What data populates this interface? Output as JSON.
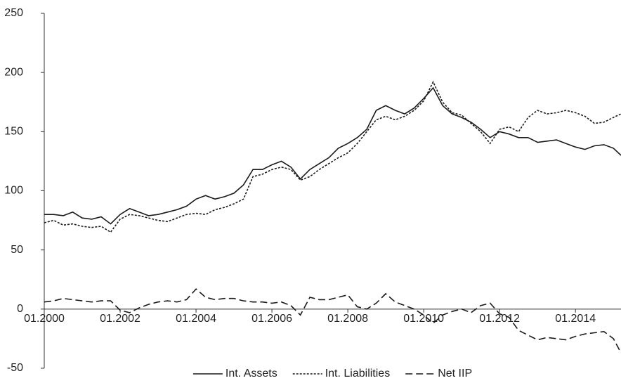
{
  "chart_data": {
    "type": "line",
    "x": [
      2000,
      2000.25,
      2000.5,
      2000.75,
      2001,
      2001.25,
      2001.5,
      2001.75,
      2002,
      2002.25,
      2002.5,
      2002.75,
      2003,
      2003.25,
      2003.5,
      2003.75,
      2004,
      2004.25,
      2004.5,
      2004.75,
      2005,
      2005.25,
      2005.5,
      2005.75,
      2006,
      2006.25,
      2006.5,
      2006.75,
      2007,
      2007.25,
      2007.5,
      2007.75,
      2008,
      2008.25,
      2008.5,
      2008.75,
      2009,
      2009.25,
      2009.5,
      2009.75,
      2010,
      2010.25,
      2010.5,
      2010.75,
      2011,
      2011.25,
      2011.5,
      2011.75,
      2012,
      2012.25,
      2012.5,
      2012.75,
      2013,
      2013.25,
      2013.5,
      2013.75,
      2014,
      2014.25,
      2014.5,
      2014.75,
      2015,
      2015.2
    ],
    "series": [
      {
        "name": "Int. Assets",
        "color": "#1a1a1a",
        "style": "solid",
        "values": [
          80,
          80,
          79,
          82,
          77,
          76,
          78,
          72,
          80,
          85,
          82,
          79,
          80,
          82,
          84,
          87,
          93,
          96,
          93,
          95,
          98,
          105,
          118,
          118,
          122,
          125,
          120,
          110,
          118,
          123,
          128,
          136,
          140,
          145,
          152,
          168,
          172,
          168,
          165,
          170,
          178,
          187,
          172,
          165,
          162,
          158,
          152,
          145,
          150,
          148,
          145,
          145,
          141,
          142,
          143,
          140,
          137,
          135,
          138,
          139,
          136,
          130
        ]
      },
      {
        "name": "Int. Liabilities",
        "color": "#1a1a1a",
        "style": "dotted",
        "values": [
          73,
          75,
          71,
          72,
          70,
          69,
          70,
          65,
          76,
          80,
          79,
          77,
          75,
          74,
          77,
          80,
          81,
          80,
          84,
          86,
          89,
          93,
          112,
          114,
          118,
          120,
          118,
          109,
          112,
          118,
          123,
          128,
          132,
          140,
          150,
          160,
          163,
          160,
          163,
          168,
          176,
          192,
          175,
          166,
          164,
          157,
          150,
          140,
          152,
          154,
          150,
          162,
          168,
          165,
          166,
          168,
          166,
          163,
          157,
          158,
          162,
          165
        ]
      },
      {
        "name": "Net IIP",
        "color": "#1a1a1a",
        "style": "dashed",
        "values": [
          6,
          7,
          9,
          8,
          7,
          6,
          7,
          7,
          -1,
          -3,
          1,
          4,
          6,
          7,
          6,
          8,
          17,
          10,
          8,
          9,
          9,
          7,
          6,
          6,
          5,
          6,
          3,
          -5,
          10,
          8,
          8,
          10,
          12,
          2,
          0,
          5,
          13,
          6,
          3,
          0,
          -5,
          -12,
          -5,
          -2,
          0,
          -3,
          3,
          5,
          -4,
          -7,
          -18,
          -22,
          -26,
          -24,
          -25,
          -26,
          -23,
          -21,
          -20,
          -19,
          -25,
          -37
        ]
      }
    ],
    "xlim": [
      2000,
      2015.2
    ],
    "xticks": [
      {
        "value": 2000,
        "label": "01.2000"
      },
      {
        "value": 2002,
        "label": "01.2002"
      },
      {
        "value": 2004,
        "label": "01.2004"
      },
      {
        "value": 2006,
        "label": "01.2006"
      },
      {
        "value": 2008,
        "label": "01.2008"
      },
      {
        "value": 2010,
        "label": "01.2010"
      },
      {
        "value": 2012,
        "label": "01.2012"
      },
      {
        "value": 2014,
        "label": "01.2014"
      }
    ],
    "ylim": [
      -50,
      250
    ],
    "yticks": [
      -50,
      0,
      50,
      100,
      150,
      200,
      250
    ],
    "grid": false,
    "legend": "bottom"
  }
}
